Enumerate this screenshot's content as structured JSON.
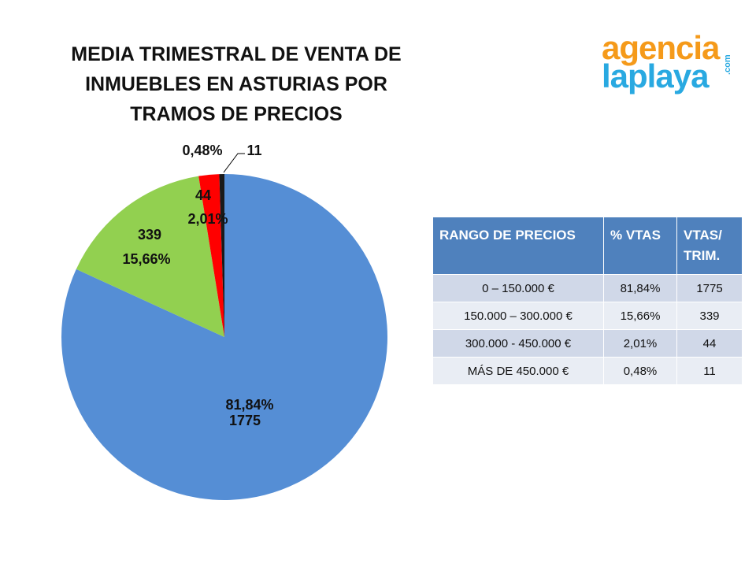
{
  "title_lines": [
    "MEDIA TRIMESTRAL DE VENTA DE",
    "INMUEBLES EN ASTURIAS POR",
    "TRAMOS DE PRECIOS"
  ],
  "logo": {
    "line1": "agencia",
    "line2": "laplaya",
    "suffix": ".com",
    "color1": "#F59A1A",
    "color2": "#29A9E1"
  },
  "chart_data": {
    "type": "pie",
    "title": "MEDIA TRIMESTRAL DE VENTA DE INMUEBLES EN ASTURIAS POR TRAMOS DE PRECIOS",
    "categories": [
      "0 – 150.000 €",
      "150.000 – 300.000 €",
      "300.000 - 450.000 €",
      "MÁS DE 450.000 €"
    ],
    "values": [
      1775,
      339,
      44,
      11
    ],
    "percent_labels": [
      "81,84%",
      "15,66%",
      "2,01%",
      "0,48%"
    ],
    "value_labels": [
      "1775",
      "339",
      "44",
      "11"
    ],
    "colors": [
      "#558ED5",
      "#92D050",
      "#FF0000",
      "#1A1A1A"
    ],
    "legend": "none"
  },
  "table": {
    "headers": [
      "RANGO DE PRECIOS",
      "% VTAS",
      "VTAS/ TRIM."
    ],
    "rows": [
      [
        "0 – 150.000 €",
        "81,84%",
        "1775"
      ],
      [
        "150.000 – 300.000 €",
        "15,66%",
        "339"
      ],
      [
        "300.000 - 450.000 €",
        "2,01%",
        "44"
      ],
      [
        "MÁS DE 450.000 €",
        "0,48%",
        "11"
      ]
    ]
  }
}
